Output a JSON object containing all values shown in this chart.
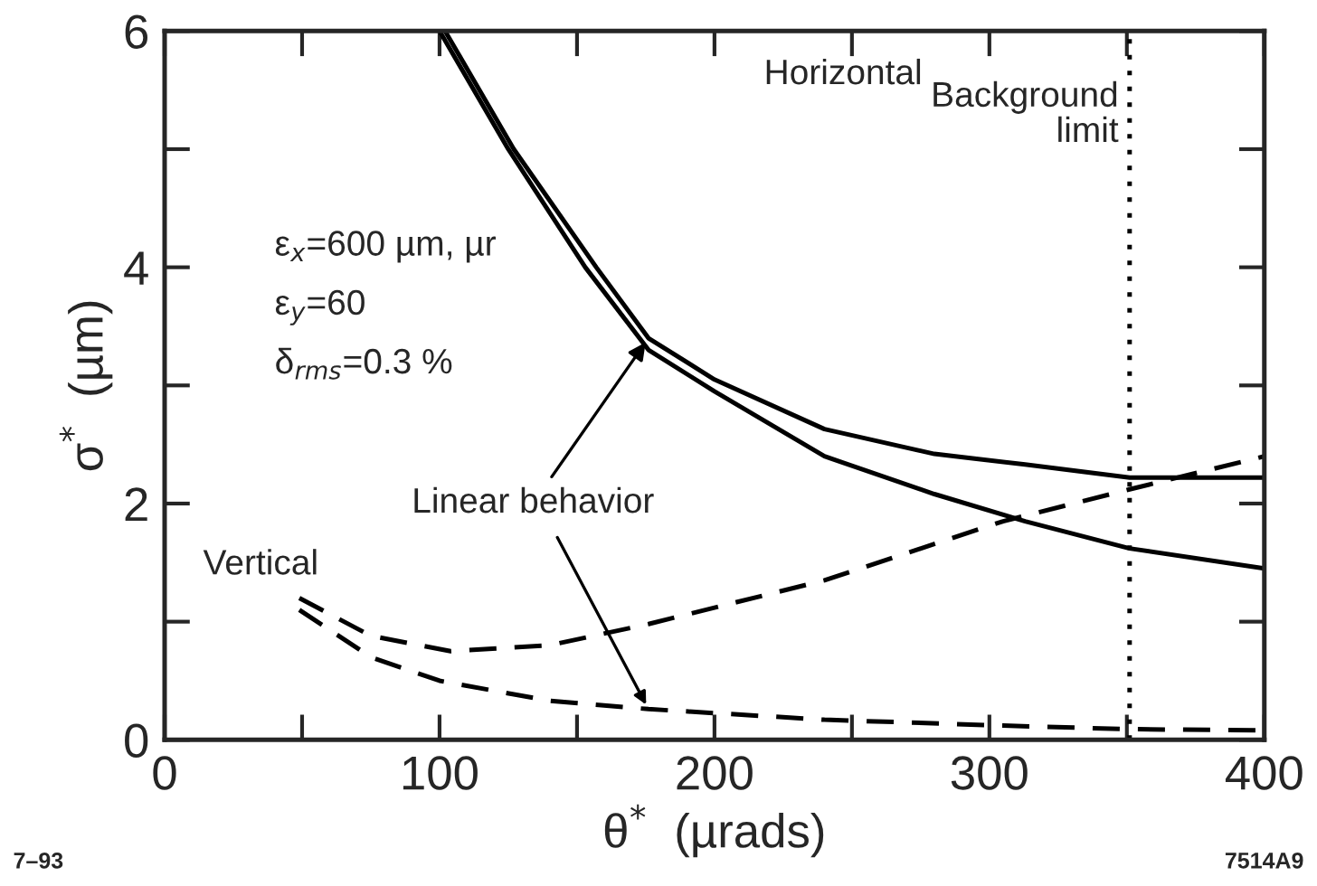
{
  "chart_data": {
    "type": "line",
    "xlabel": "θ$^{*}$  (µrads)",
    "ylabel": "σ$^{*}$  (µm)",
    "xlim": [
      0,
      400
    ],
    "ylim": [
      0,
      6
    ],
    "xticks": [
      0,
      {
        "value": 50,
        "label": null
      },
      100,
      {
        "value": 150,
        "label": null
      },
      200,
      {
        "value": 250,
        "label": null
      },
      300,
      {
        "value": 350,
        "label": null
      },
      400
    ],
    "yticks": [
      0,
      {
        "value": 1,
        "label": null
      },
      2,
      {
        "value": 3,
        "label": null
      },
      4,
      {
        "value": 5,
        "label": null
      },
      6
    ],
    "grid": false,
    "legend": false,
    "marker": "none",
    "series": [
      {
        "color": "#000000",
        "line_style": "solid",
        "x": [
          102,
          127,
          157,
          176,
          200,
          240,
          280,
          313,
          351,
          400
        ],
        "values": [
          6,
          5,
          4,
          3.4,
          3.05,
          2.63,
          2.42,
          2.33,
          2.22,
          2.22
        ]
      },
      {
        "color": "#000000",
        "line_style": "solid",
        "x": [
          100,
          125,
          153,
          176,
          200,
          240,
          280,
          313,
          351,
          400
        ],
        "values": [
          6,
          5,
          4,
          3.3,
          2.95,
          2.4,
          2.08,
          1.85,
          1.62,
          1.45
        ]
      },
      {
        "color": "#000000",
        "line_style": "dashed",
        "x": [
          49,
          75,
          104,
          140,
          176,
          240,
          305,
          351,
          400
        ],
        "values": [
          1.2,
          0.88,
          0.75,
          0.8,
          0.98,
          1.35,
          1.85,
          2.12,
          2.4
        ]
      },
      {
        "color": "#000000",
        "line_style": "dashed",
        "x": [
          49,
          75,
          100,
          140,
          176,
          240,
          305,
          351,
          400
        ],
        "values": [
          1.1,
          0.7,
          0.5,
          0.33,
          0.26,
          0.17,
          0.12,
          0.09,
          0.08
        ]
      }
    ],
    "ref_lines": [
      {
        "axis": "x",
        "value": 351,
        "label": "Background\nlimit",
        "color": "#000000",
        "line_style": "dotted"
      }
    ],
    "annotations": [
      "Horizontal",
      "ε$_{x}$=600 µm, µr",
      "ε$_{y}$=60",
      "δ$_{rms}$=0.3 %",
      {
        "text": "Linear behavior",
        "x": 176,
        "y": 3.4
      },
      "Vertical",
      "7–93",
      "7514A9"
    ]
  }
}
